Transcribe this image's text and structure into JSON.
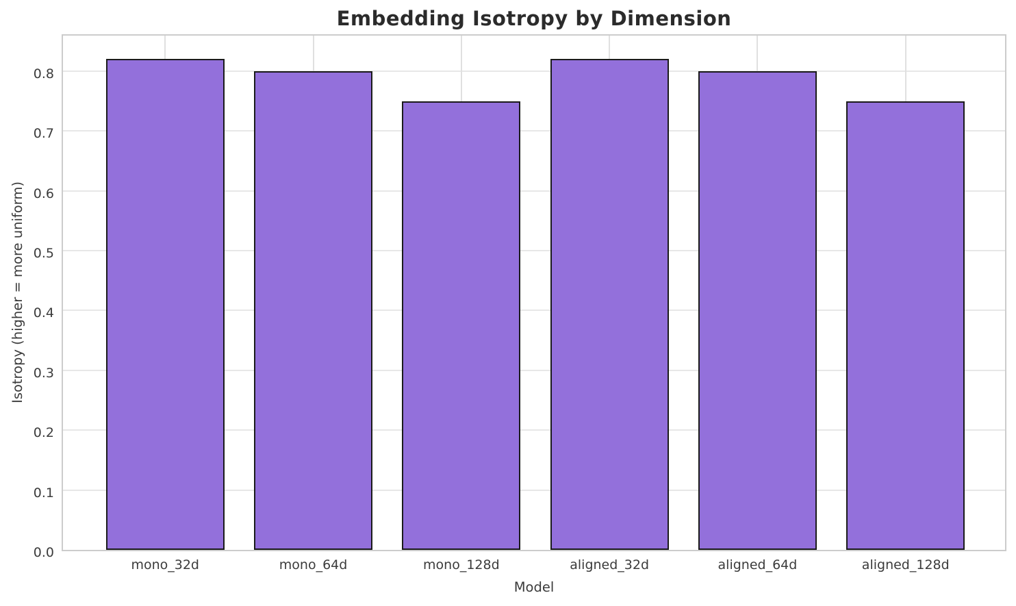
{
  "chart_data": {
    "type": "bar",
    "title": "Embedding Isotropy by Dimension",
    "xlabel": "Model",
    "ylabel": "Isotropy (higher = more uniform)",
    "categories": [
      "mono_32d",
      "mono_64d",
      "mono_128d",
      "aligned_32d",
      "aligned_64d",
      "aligned_128d"
    ],
    "values": [
      0.82,
      0.8,
      0.75,
      0.82,
      0.8,
      0.75
    ],
    "ylim": [
      0,
      0.864
    ],
    "yticks": [
      0.0,
      0.1,
      0.2,
      0.3,
      0.4,
      0.5,
      0.6,
      0.7,
      0.8
    ],
    "ytick_decimals": 1,
    "grid": true,
    "legend_position": "none",
    "bar_width_fraction": 0.8,
    "x_edge_margin_units": 0.69,
    "colors": {
      "bar_fill": "#9370DB",
      "bar_edge": "#1a1a1a",
      "horizontal_grid": "#e7e7e7",
      "vertical_grid": "#e0e0e0",
      "spine": "#cccccc",
      "title_text": "#2b2b2b",
      "tick_text": "#3b3b3b"
    }
  }
}
